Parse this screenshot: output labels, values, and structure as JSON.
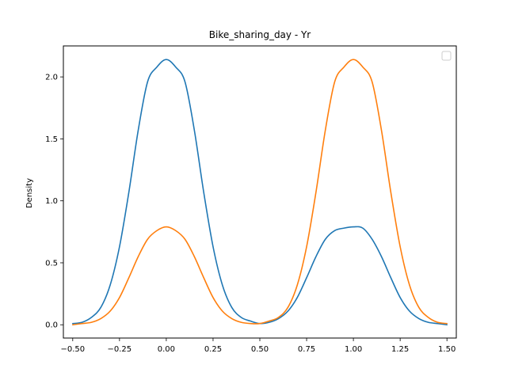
{
  "chart_data": {
    "type": "line",
    "title": "Bike_sharing_day - Yr",
    "xlabel": "",
    "ylabel": "Density",
    "xlim": [
      -0.55,
      1.55
    ],
    "ylim": [
      -0.107,
      2.25
    ],
    "x_ticks": [
      -0.5,
      -0.25,
      0.0,
      0.25,
      0.5,
      0.75,
      1.0,
      1.25,
      1.5
    ],
    "x_tick_labels": [
      "−0.50",
      "−0.25",
      "0.00",
      "0.25",
      "0.50",
      "0.75",
      "1.00",
      "1.25",
      "1.50"
    ],
    "y_ticks": [
      0.0,
      0.5,
      1.0,
      1.5,
      2.0
    ],
    "y_tick_labels": [
      "0.0",
      "0.5",
      "1.0",
      "1.5",
      "2.0"
    ],
    "grid": false,
    "legend": {
      "placement": "top-right",
      "entries": []
    },
    "series": [
      {
        "color": "#1f77b4",
        "x": [
          -0.5,
          -0.45,
          -0.4,
          -0.35,
          -0.3,
          -0.25,
          -0.2,
          -0.15,
          -0.1,
          -0.05,
          0.0,
          0.05,
          0.1,
          0.15,
          0.2,
          0.25,
          0.3,
          0.35,
          0.4,
          0.45,
          0.5,
          0.55,
          0.6,
          0.65,
          0.7,
          0.75,
          0.8,
          0.85,
          0.9,
          0.95,
          1.0,
          1.05,
          1.1,
          1.15,
          1.2,
          1.25,
          1.3,
          1.35,
          1.4,
          1.45,
          1.5
        ],
        "y": [
          0.01,
          0.02,
          0.06,
          0.14,
          0.32,
          0.63,
          1.07,
          1.57,
          1.96,
          2.08,
          2.14,
          2.08,
          1.96,
          1.57,
          1.07,
          0.63,
          0.32,
          0.14,
          0.06,
          0.03,
          0.01,
          0.02,
          0.05,
          0.11,
          0.22,
          0.38,
          0.55,
          0.69,
          0.76,
          0.78,
          0.79,
          0.78,
          0.69,
          0.55,
          0.38,
          0.22,
          0.11,
          0.05,
          0.02,
          0.01,
          0.0
        ]
      },
      {
        "color": "#ff7f0e",
        "x": [
          -0.5,
          -0.45,
          -0.4,
          -0.35,
          -0.3,
          -0.25,
          -0.2,
          -0.15,
          -0.1,
          -0.05,
          0.0,
          0.05,
          0.1,
          0.15,
          0.2,
          0.25,
          0.3,
          0.35,
          0.4,
          0.45,
          0.5,
          0.55,
          0.6,
          0.65,
          0.7,
          0.75,
          0.8,
          0.85,
          0.9,
          0.95,
          1.0,
          1.05,
          1.1,
          1.15,
          1.2,
          1.25,
          1.3,
          1.35,
          1.4,
          1.45,
          1.5
        ],
        "y": [
          0.0,
          0.01,
          0.02,
          0.05,
          0.11,
          0.22,
          0.38,
          0.55,
          0.69,
          0.76,
          0.79,
          0.76,
          0.69,
          0.55,
          0.38,
          0.22,
          0.11,
          0.05,
          0.02,
          0.01,
          0.01,
          0.03,
          0.06,
          0.14,
          0.32,
          0.63,
          1.07,
          1.57,
          1.96,
          2.08,
          2.14,
          2.08,
          1.96,
          1.57,
          1.07,
          0.63,
          0.32,
          0.14,
          0.06,
          0.02,
          0.01
        ]
      }
    ]
  }
}
